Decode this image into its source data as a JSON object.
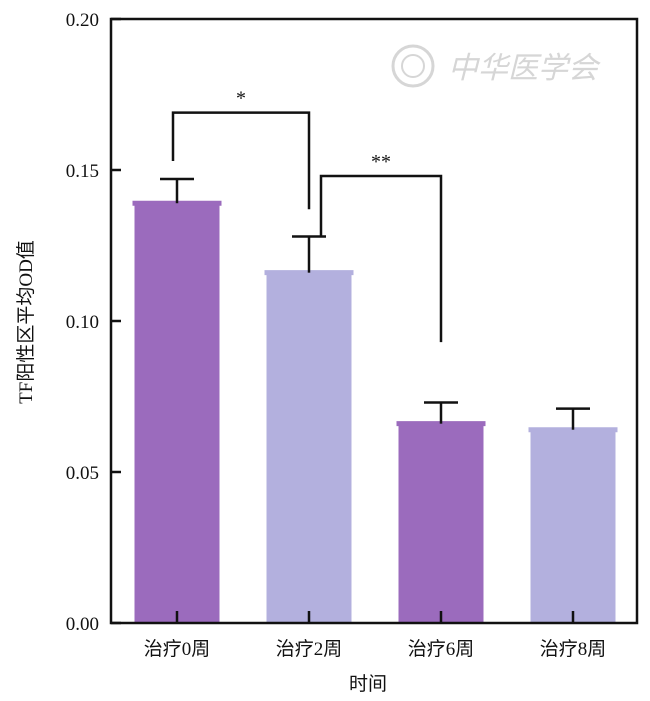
{
  "watermark_text": "中华医学会",
  "chart_data": {
    "type": "bar",
    "title": "",
    "xlabel": "时间",
    "ylabel": "TF阳性区平均OD值",
    "categories": [
      "治疗0周",
      "治疗2周",
      "治疗6周",
      "治疗8周"
    ],
    "values": [
      0.139,
      0.116,
      0.066,
      0.064
    ],
    "errors": [
      0.008,
      0.012,
      0.007,
      0.007
    ],
    "bar_colors": [
      "#9b6bbd",
      "#b3b0de",
      "#9b6bbd",
      "#b3b0de"
    ],
    "ylim": [
      0,
      0.2
    ],
    "yticks": [
      "0.00",
      "0.05",
      "0.10",
      "0.15",
      "0.20"
    ],
    "ytick_values": [
      0,
      0.05,
      0.1,
      0.15,
      0.2
    ],
    "grid": false,
    "significance": [
      {
        "from": 0,
        "to": 1,
        "label": "*"
      },
      {
        "from": 1,
        "to": 2,
        "label": "**"
      }
    ]
  }
}
